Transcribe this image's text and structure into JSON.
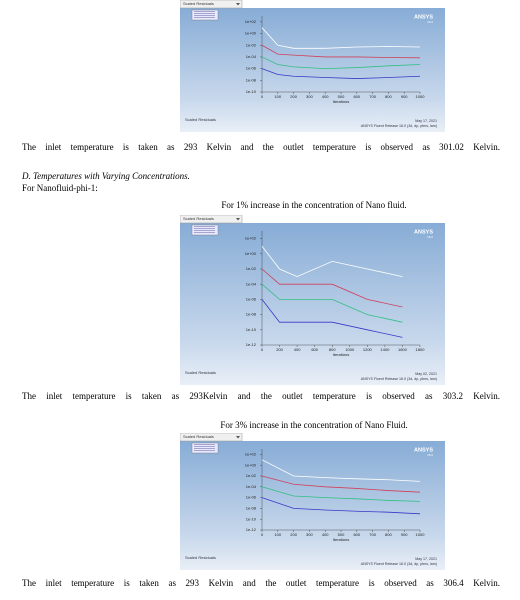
{
  "figures": [
    {
      "title_bar": "Scaled Residuals",
      "brand": "ANSYS",
      "version": "16.0",
      "xlabel": "Iterations",
      "footer_left": "Scaled Residuals",
      "date": "May 17, 2021",
      "release": "ANSYS Fluent Release 16.0 (3d, dp, pbns, lam)",
      "log_y": true,
      "xlim": [
        0,
        1000
      ],
      "xticks": [
        0,
        100,
        200,
        300,
        400,
        500,
        600,
        700,
        800,
        900,
        1000
      ],
      "ylim": [
        1e-10,
        1000
      ],
      "yticks": [
        {
          "value": 100,
          "label": "1e+02"
        },
        {
          "value": 1,
          "label": "1e+00"
        },
        {
          "value": 0.01,
          "label": "1e-02"
        },
        {
          "value": 0.0001,
          "label": "1e-04"
        },
        {
          "value": 1e-06,
          "label": "1e-06"
        },
        {
          "value": 1e-08,
          "label": "1e-08"
        },
        {
          "value": 1e-10,
          "label": "1e-10"
        }
      ],
      "x": [
        0,
        100,
        200,
        400,
        600,
        800,
        1000
      ],
      "series": [
        {
          "color": "#ffffff",
          "values": [
            10,
            0.01,
            0.003,
            0.003,
            0.005,
            0.006,
            0.005
          ]
        },
        {
          "color": "#d0405a",
          "values": [
            0.01,
            0.0003,
            0.0002,
            0.0001,
            0.0001,
            8e-05,
            7e-05
          ]
        },
        {
          "color": "#30c080",
          "values": [
            0.0001,
            5e-06,
            2e-06,
            1e-06,
            1.5e-06,
            3e-06,
            5e-06
          ]
        },
        {
          "color": "#3838c8",
          "values": [
            1e-06,
            1e-07,
            5e-08,
            3e-08,
            2e-08,
            3e-08,
            5e-08
          ]
        }
      ]
    },
    {
      "title_bar": "Scaled Residuals",
      "brand": "ANSYS",
      "version": "16.0",
      "xlabel": "Iterations",
      "footer_left": "Scaled Residuals",
      "date": "May 02, 2021",
      "release": "ANSYS Fluent Release 16.0 (3d, dp, pbns, lam)",
      "log_y": true,
      "xlim": [
        0,
        1800
      ],
      "xticks": [
        0,
        200,
        400,
        600,
        800,
        1000,
        1200,
        1400,
        1600,
        1800
      ],
      "ylim": [
        1e-12,
        1000
      ],
      "yticks": [
        {
          "value": 100,
          "label": "1e+02"
        },
        {
          "value": 1,
          "label": "1e+00"
        },
        {
          "value": 0.01,
          "label": "1e-02"
        },
        {
          "value": 0.0001,
          "label": "1e-04"
        },
        {
          "value": 1e-06,
          "label": "1e-06"
        },
        {
          "value": 1e-08,
          "label": "1e-08"
        },
        {
          "value": 1e-10,
          "label": "1e-10"
        },
        {
          "value": 1e-12,
          "label": "1e-12"
        }
      ],
      "x": [
        0,
        200,
        400,
        800,
        1200,
        1600
      ],
      "series": [
        {
          "color": "#ffffff",
          "values": [
            10,
            0.01,
            0.001,
            0.1,
            0.01,
            0.001
          ]
        },
        {
          "color": "#d0405a",
          "values": [
            0.01,
            0.0001,
            0.0001,
            0.0001,
            1e-06,
            1e-07
          ]
        },
        {
          "color": "#30c080",
          "values": [
            0.0001,
            1e-06,
            1e-06,
            1e-06,
            1e-08,
            1e-09
          ]
        },
        {
          "color": "#3838c8",
          "values": [
            1e-06,
            1e-09,
            1e-09,
            1e-09,
            1e-10,
            1e-11
          ]
        }
      ]
    },
    {
      "title_bar": "Scaled Residuals",
      "brand": "ANSYS",
      "version": "16.0",
      "xlabel": "Iterations",
      "footer_left": "Scaled Residuals",
      "date": "May 17, 2021",
      "release": "ANSYS Fluent Release 16.0 (3d, dp, pbns, lam)",
      "log_y": true,
      "xlim": [
        0,
        1000
      ],
      "xticks": [
        0,
        100,
        200,
        300,
        400,
        500,
        600,
        700,
        800,
        900,
        1000
      ],
      "ylim": [
        1e-12,
        1000
      ],
      "yticks": [
        {
          "value": 100,
          "label": "1e+02"
        },
        {
          "value": 1,
          "label": "1e+00"
        },
        {
          "value": 0.01,
          "label": "1e-02"
        },
        {
          "value": 0.0001,
          "label": "1e-04"
        },
        {
          "value": 1e-06,
          "label": "1e-06"
        },
        {
          "value": 1e-08,
          "label": "1e-08"
        },
        {
          "value": 1e-10,
          "label": "1e-10"
        },
        {
          "value": 1e-12,
          "label": "1e-12"
        }
      ],
      "x": [
        0,
        200,
        400,
        600,
        800,
        1000
      ],
      "series": [
        {
          "color": "#ffffff",
          "values": [
            10,
            0.01,
            0.005,
            0.003,
            0.002,
            0.001
          ]
        },
        {
          "color": "#d0405a",
          "values": [
            0.01,
            0.0003,
            0.0001,
            5e-05,
            2e-05,
            1e-05
          ]
        },
        {
          "color": "#30c080",
          "values": [
            0.0001,
            2e-06,
            1e-06,
            6e-07,
            3e-07,
            2e-07
          ]
        },
        {
          "color": "#3838c8",
          "values": [
            1e-06,
            1e-08,
            5e-09,
            3e-09,
            2e-09,
            1e-09
          ]
        }
      ]
    }
  ],
  "body": {
    "paragraph_1": "The inlet temperature is taken as 293 Kelvin and the outlet temperature is observed as 301.02 Kelvin.",
    "section_heading": "D.   Temperatures with Varying Concentrations.",
    "subheading": "For Nanofluid-phi-1:",
    "caption_1": "For 1% increase in the concentration of Nano fluid.",
    "paragraph_2": "The inlet temperature is taken as 293Kelvin and the outlet temperature is observed as 303.2 Kelvin.",
    "caption_2": "For 3% increase in the concentration of Nano Fluid.",
    "paragraph_3": "The inlet temperature is taken as 293 Kelvin and the outlet temperature is observed as 306.4 Kelvin."
  }
}
